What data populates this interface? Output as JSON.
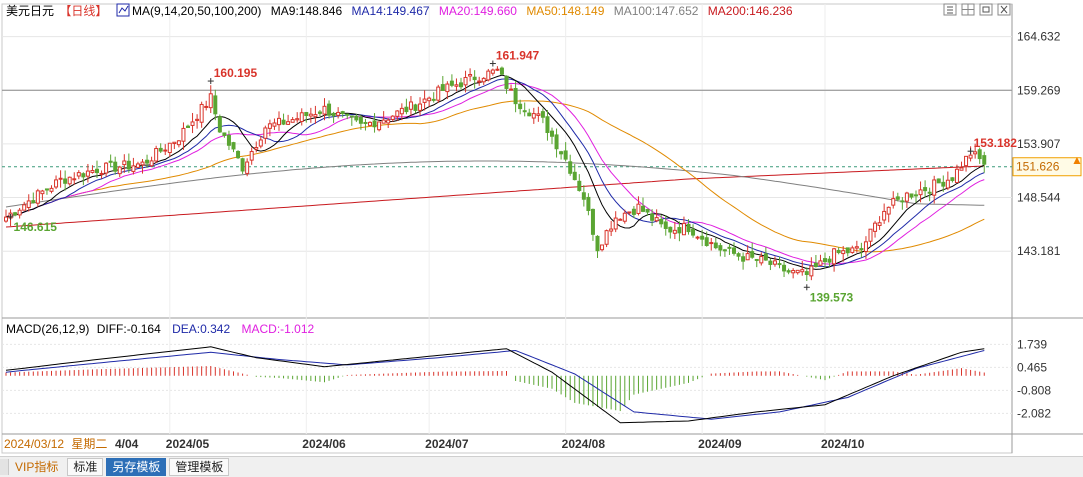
{
  "header": {
    "symbol": "美元日元",
    "period": "【日线】",
    "ma_group": "MA(9,14,20,50,100,200)",
    "ma_values": [
      {
        "label": "MA9:148.846",
        "color": "#000000"
      },
      {
        "label": "MA14:149.467",
        "color": "#1f2aa8"
      },
      {
        "label": "MA20:149.660",
        "color": "#e020e0"
      },
      {
        "label": "MA50:148.149",
        "color": "#e08a00"
      },
      {
        "label": "MA100:147.652",
        "color": "#808080"
      },
      {
        "label": "MA200:146.236",
        "color": "#c8191e"
      }
    ]
  },
  "macd_header": {
    "title": "MACD(26,12,9)",
    "diff": "DIFF:-0.164",
    "dea": "DEA:0.342",
    "macd": "MACD:-1.012"
  },
  "footer": {
    "start_date": "2024/03/12",
    "weekday": "星期二",
    "first_tick": "4/04"
  },
  "tabs": [
    {
      "label": "VIP指标",
      "active": false,
      "vip": true
    },
    {
      "label": "标准",
      "active": false,
      "vip": false
    },
    {
      "label": "另存模板",
      "active": true,
      "vip": false
    },
    {
      "label": "管理模板",
      "active": false,
      "vip": false
    }
  ],
  "colors": {
    "up": "#d9342b",
    "down": "#5aa532",
    "grid": "#e6e6e6",
    "current_price_bg": "#fffbe6",
    "current_price_border": "#f0a000"
  },
  "chart_data": {
    "type": "candlestick",
    "price_axis": {
      "ticks": [
        164.632,
        159.269,
        153.907,
        148.544,
        143.181
      ],
      "ylim": [
        136.9,
        166.1
      ],
      "current_price": 151.626,
      "reference_line": 159.269
    },
    "macd_axis": {
      "ticks": [
        1.739,
        0.465,
        -0.808,
        -2.082
      ],
      "ylim": [
        -3.0,
        2.2
      ]
    },
    "x_axis": {
      "ticks": [
        "2024/05",
        "2024/06",
        "2024/07",
        "2024/08",
        "2024/09",
        "2024/10"
      ],
      "tick_index": [
        36,
        66,
        93,
        123,
        153,
        180
      ]
    },
    "annotations": [
      {
        "text": "160.195",
        "value": 160.195,
        "kind": "high",
        "index": 45
      },
      {
        "text": "161.947",
        "value": 161.947,
        "kind": "high",
        "index": 107
      },
      {
        "text": "153.182",
        "value": 153.182,
        "kind": "high",
        "index": 212
      },
      {
        "text": "146.615",
        "value": 146.615,
        "kind": "low",
        "index": 1
      },
      {
        "text": "139.573",
        "value": 139.573,
        "kind": "low",
        "index": 176
      }
    ],
    "series_names": [
      "MA9",
      "MA14",
      "MA20",
      "MA50",
      "MA100",
      "MA200",
      "DIFF",
      "DEA",
      "MACD"
    ]
  }
}
